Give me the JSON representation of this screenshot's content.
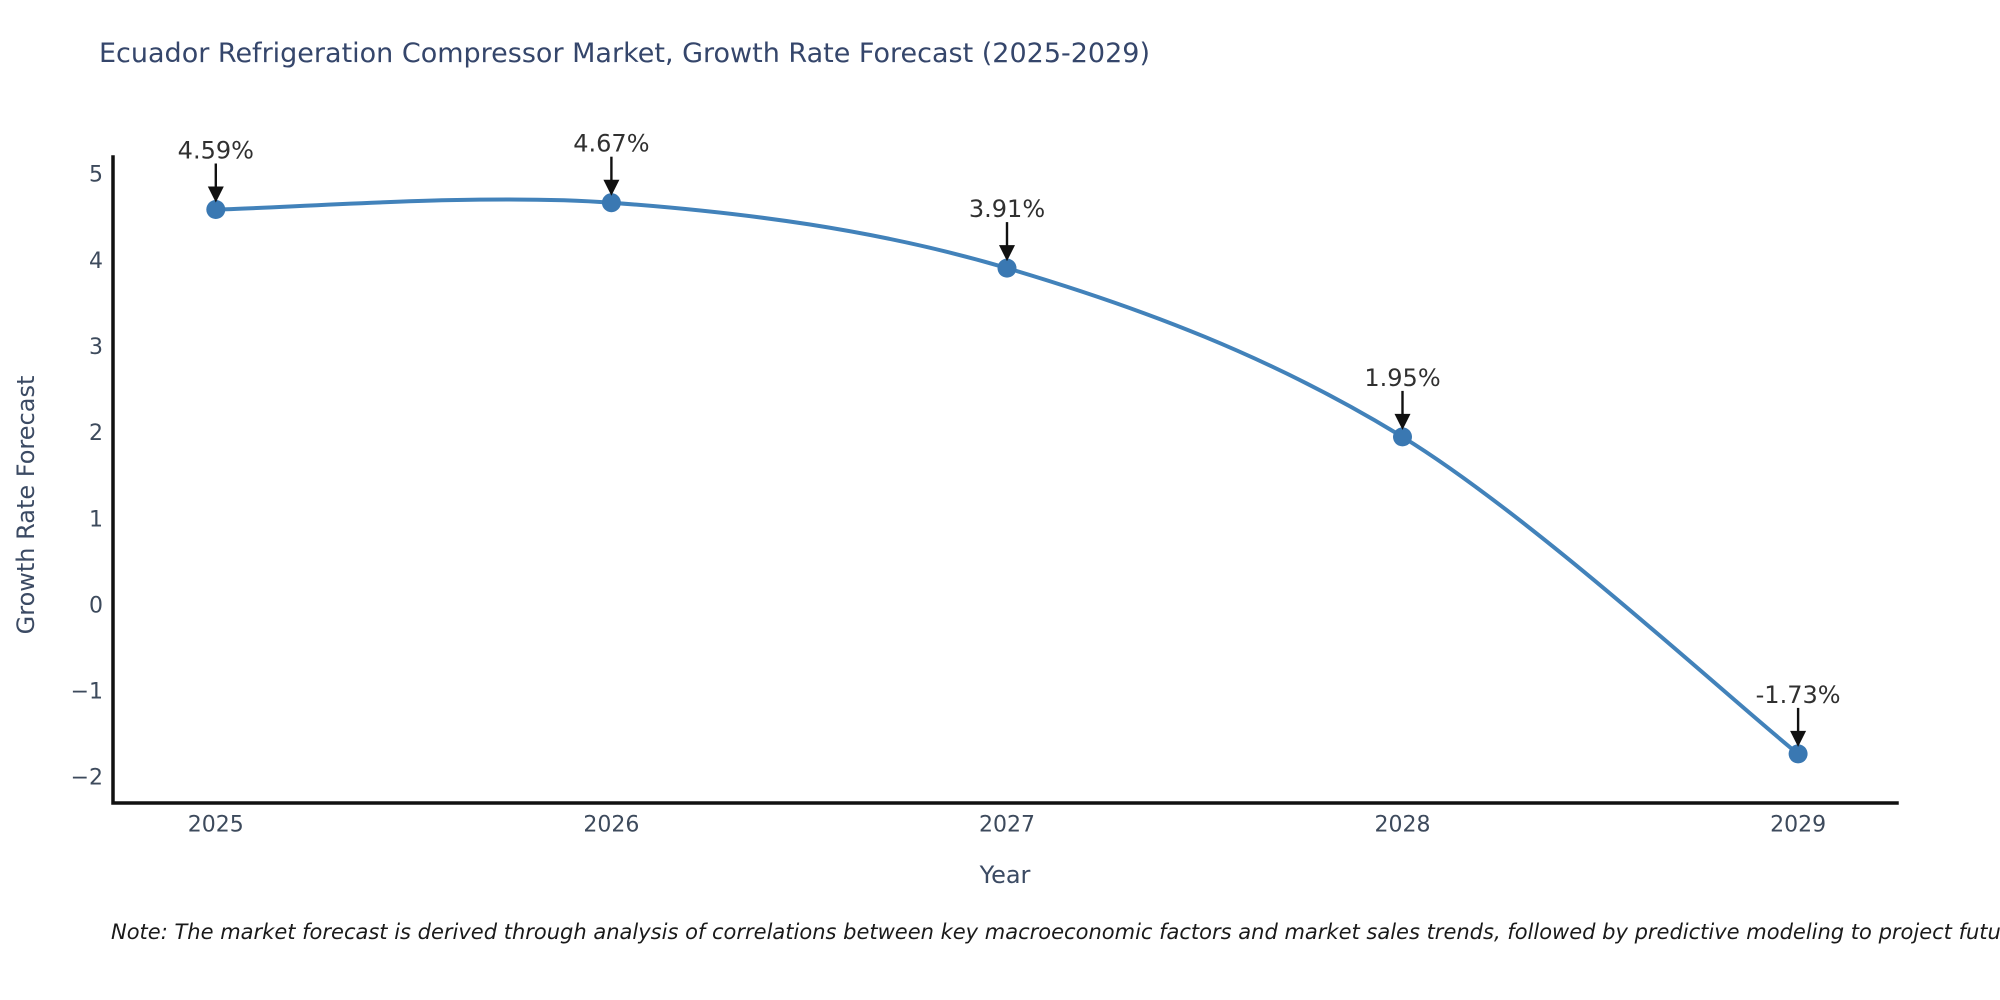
{
  "chart": {
    "title": "Ecuador Refrigeration Compressor Market, Growth Rate Forecast (2025-2029)",
    "ylabel": "Growth Rate Forecast",
    "xlabel": "Year",
    "note": "Note: The market forecast is derived through analysis of correlations between key macroeconomic factors and market sales trends, followed by predictive modeling to project future sales"
  },
  "chart_data": {
    "type": "line",
    "title": "Ecuador Refrigeration Compressor Market, Growth Rate Forecast (2025-2029)",
    "xlabel": "Year",
    "ylabel": "Growth Rate Forecast",
    "x": [
      2025,
      2026,
      2027,
      2028,
      2029
    ],
    "values": [
      4.59,
      4.67,
      3.91,
      1.95,
      -1.73
    ],
    "point_labels": [
      "4.59%",
      "4.67%",
      "3.91%",
      "1.95%",
      "-1.73%"
    ],
    "xtick_labels": [
      "2025",
      "2026",
      "2027",
      "2028",
      "2029"
    ],
    "yticks": [
      {
        "v": 5,
        "label": "5"
      },
      {
        "v": 4,
        "label": "4"
      },
      {
        "v": 3,
        "label": "3"
      },
      {
        "v": 2,
        "label": "2"
      },
      {
        "v": 1,
        "label": "1"
      },
      {
        "v": 0,
        "label": "0"
      },
      {
        "v": -1,
        "label": "−1"
      },
      {
        "v": -2,
        "label": "−2"
      }
    ],
    "xlim": [
      2024.74,
      2029.25
    ],
    "ylim": [
      -2.3,
      5.2
    ],
    "grid": false,
    "legend": "none",
    "line_shape": "smooth",
    "colors": {
      "line": "#4282ba",
      "marker": "#3a78b2",
      "spine": "#111111",
      "arrow": "#111111"
    }
  }
}
